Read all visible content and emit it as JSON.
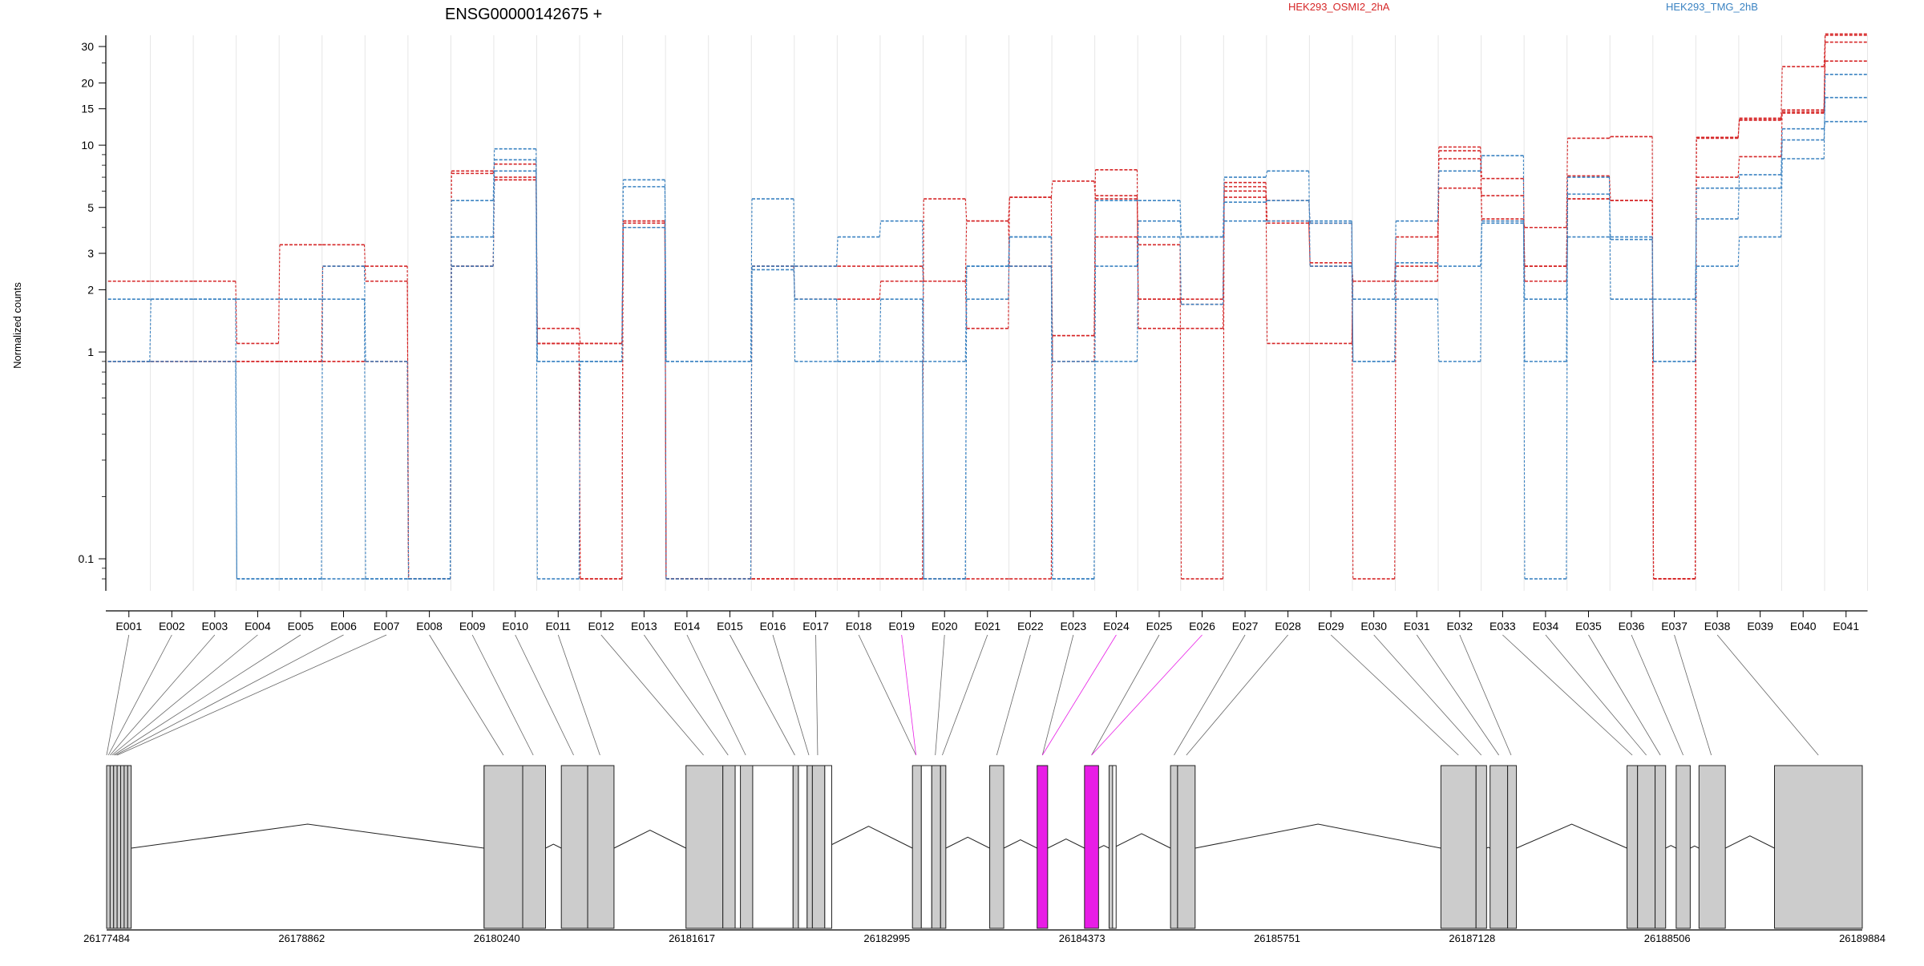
{
  "title": "ENSG00000142675 +",
  "colors": {
    "cond_a": "#d62728",
    "cond_b": "#3b83c2",
    "highlight": "#e81de6",
    "exon_fill": "#cccccc",
    "grid": "#e6e6e6",
    "axis": "#000000"
  },
  "chart_data": {
    "type": "line",
    "title": "ENSG00000142675 +",
    "xlabel": "",
    "ylabel": "Normalized counts",
    "y_scale": "log",
    "ylim": [
      0.07,
      34
    ],
    "y_ticks": [
      0.1,
      1,
      2,
      3,
      5,
      10,
      15,
      20,
      30
    ],
    "y_tick_labels": [
      "0.1",
      "1",
      "2",
      "3",
      "5",
      "10",
      "15",
      "20",
      "30"
    ],
    "grid": "vertical",
    "legend": [
      {
        "name": "HEK293_OSMI2_2hA",
        "color": "#d62728"
      },
      {
        "name": "HEK293_TMG_2hB",
        "color": "#3b83c2"
      }
    ],
    "categories": [
      "E001",
      "E002",
      "E003",
      "E004",
      "E005",
      "E006",
      "E007",
      "E008",
      "E009",
      "E010",
      "E011",
      "E012",
      "E013",
      "E014",
      "E015",
      "E016",
      "E017",
      "E018",
      "E019",
      "E020",
      "E021",
      "E022",
      "E023",
      "E024",
      "E025",
      "E026",
      "E027",
      "E028",
      "E029",
      "E030",
      "E031",
      "E032",
      "E033",
      "E034",
      "E035",
      "E036",
      "E037",
      "E038",
      "E039",
      "E040",
      "E041"
    ],
    "series": [
      {
        "group": "a",
        "values": [
          2.2,
          2.2,
          2.2,
          1.1,
          3.3,
          3.3,
          2.2,
          0.08,
          7.5,
          7.0,
          1.1,
          1.1,
          4.2,
          0.08,
          0.08,
          0.08,
          0.08,
          0.08,
          0.08,
          0.08,
          0.08,
          0.08,
          1.2,
          7.6,
          1.3,
          1.3,
          5.6,
          5.4,
          4.2,
          0.08,
          2.2,
          9.8,
          4.3,
          4.0,
          10.8,
          11.0,
          0.08,
          10.9,
          13.5,
          24.0,
          34.0
        ]
      },
      {
        "group": "a",
        "values": [
          0.9,
          0.9,
          0.9,
          0.9,
          0.9,
          2.6,
          2.6,
          0.08,
          7.3,
          8.1,
          1.3,
          1.1,
          4.0,
          0.08,
          0.08,
          0.08,
          0.08,
          0.08,
          0.08,
          5.5,
          4.3,
          5.6,
          6.7,
          5.5,
          3.3,
          0.08,
          6.6,
          1.1,
          1.1,
          2.2,
          3.6,
          9.4,
          6.9,
          2.2,
          5.5,
          5.4,
          0.08,
          7.0,
          8.8,
          14.5,
          25.5
        ]
      },
      {
        "group": "a",
        "values": [
          0.9,
          0.9,
          0.9,
          0.9,
          0.9,
          0.9,
          0.9,
          0.08,
          2.6,
          6.8,
          1.1,
          0.08,
          4.3,
          0.08,
          0.08,
          2.6,
          2.6,
          2.6,
          2.6,
          2.2,
          1.3,
          5.6,
          0.9,
          3.6,
          1.8,
          1.8,
          6.3,
          4.2,
          2.6,
          2.2,
          2.6,
          6.2,
          5.7,
          2.6,
          7.1,
          5.4,
          0.08,
          10.8,
          13.3,
          14.8,
          34.5
        ]
      },
      {
        "group": "a",
        "values": [
          0.9,
          0.9,
          0.9,
          0.9,
          0.9,
          0.9,
          0.9,
          0.08,
          2.6,
          6.8,
          1.1,
          0.08,
          4.3,
          0.08,
          0.08,
          2.6,
          1.8,
          1.8,
          2.2,
          2.2,
          4.3,
          2.6,
          1.2,
          5.7,
          1.8,
          1.7,
          6.0,
          4.3,
          2.7,
          2.2,
          2.2,
          8.6,
          4.4,
          2.6,
          5.5,
          5.4,
          0.08,
          10.9,
          13.2,
          14.3,
          31.5
        ]
      },
      {
        "group": "b",
        "values": [
          1.8,
          1.8,
          1.8,
          1.8,
          1.8,
          1.8,
          0.08,
          0.08,
          5.4,
          9.6,
          0.9,
          0.9,
          6.8,
          0.9,
          0.9,
          5.5,
          0.9,
          0.9,
          1.8,
          0.08,
          1.8,
          3.6,
          0.08,
          5.4,
          5.4,
          3.6,
          7.0,
          7.5,
          2.6,
          1.8,
          4.3,
          7.5,
          8.9,
          0.08,
          7.0,
          1.8,
          1.8,
          4.4,
          7.2,
          12.0,
          13.0
        ]
      },
      {
        "group": "b",
        "values": [
          0.9,
          1.8,
          1.8,
          0.08,
          0.08,
          2.6,
          0.9,
          0.08,
          3.6,
          8.5,
          0.9,
          0.9,
          6.3,
          0.9,
          0.9,
          2.6,
          2.6,
          3.6,
          4.3,
          0.9,
          2.6,
          3.6,
          0.08,
          2.6,
          4.3,
          3.6,
          4.3,
          4.3,
          4.2,
          0.9,
          1.8,
          0.9,
          4.3,
          1.8,
          3.6,
          3.6,
          0.9,
          6.2,
          6.2,
          10.6,
          17.0
        ]
      },
      {
        "group": "b",
        "values": [
          0.9,
          0.9,
          0.9,
          0.08,
          0.08,
          0.08,
          0.08,
          0.08,
          2.6,
          7.5,
          0.08,
          0.9,
          4.0,
          0.08,
          0.08,
          2.5,
          1.8,
          0.9,
          0.9,
          0.08,
          2.6,
          2.6,
          0.9,
          0.9,
          3.6,
          1.7,
          5.3,
          5.4,
          4.3,
          0.9,
          2.7,
          2.6,
          4.2,
          0.9,
          5.8,
          3.5,
          0.9,
          2.6,
          3.6,
          8.6,
          22.0
        ]
      }
    ]
  },
  "gene_model": {
    "coord_labels": [
      "26177484",
      "26178862",
      "26180240",
      "26181617",
      "26182995",
      "26184373",
      "26185751",
      "26187128",
      "26188506",
      "26189884"
    ],
    "exons": [
      {
        "start": 0.0,
        "end": 0.002,
        "hl": false
      },
      {
        "start": 0.002,
        "end": 0.004,
        "hl": false
      },
      {
        "start": 0.004,
        "end": 0.006,
        "hl": false
      },
      {
        "start": 0.006,
        "end": 0.008,
        "hl": false
      },
      {
        "start": 0.008,
        "end": 0.01,
        "hl": false
      },
      {
        "start": 0.01,
        "end": 0.012,
        "hl": false
      },
      {
        "start": 0.012,
        "end": 0.014,
        "hl": false
      },
      {
        "start": 0.215,
        "end": 0.237,
        "hl": false
      },
      {
        "start": 0.237,
        "end": 0.25,
        "hl": false
      },
      {
        "start": 0.259,
        "end": 0.274,
        "hl": false
      },
      {
        "start": 0.274,
        "end": 0.289,
        "hl": false
      },
      {
        "start": 0.33,
        "end": 0.351,
        "hl": false
      },
      {
        "start": 0.351,
        "end": 0.358,
        "hl": false
      },
      {
        "start": 0.361,
        "end": 0.368,
        "hl": false
      },
      {
        "start": 0.391,
        "end": 0.394,
        "hl": false
      },
      {
        "start": 0.399,
        "end": 0.402,
        "hl": false
      },
      {
        "start": 0.402,
        "end": 0.409,
        "hl": false
      },
      {
        "start": 0.459,
        "end": 0.464,
        "hl": false
      },
      {
        "start": 0.47,
        "end": 0.475,
        "hl": false
      },
      {
        "start": 0.475,
        "end": 0.478,
        "hl": false
      },
      {
        "start": 0.503,
        "end": 0.511,
        "hl": false
      },
      {
        "start": 0.53,
        "end": 0.536,
        "hl": true
      },
      {
        "start": 0.557,
        "end": 0.565,
        "hl": true
      },
      {
        "start": 0.571,
        "end": 0.573,
        "hl": false
      },
      {
        "start": 0.606,
        "end": 0.61,
        "hl": false
      },
      {
        "start": 0.61,
        "end": 0.62,
        "hl": false
      },
      {
        "start": 0.76,
        "end": 0.78,
        "hl": false
      },
      {
        "start": 0.78,
        "end": 0.786,
        "hl": false
      },
      {
        "start": 0.788,
        "end": 0.798,
        "hl": false
      },
      {
        "start": 0.798,
        "end": 0.803,
        "hl": false
      },
      {
        "start": 0.866,
        "end": 0.872,
        "hl": false
      },
      {
        "start": 0.872,
        "end": 0.882,
        "hl": false
      },
      {
        "start": 0.882,
        "end": 0.888,
        "hl": false
      },
      {
        "start": 0.894,
        "end": 0.902,
        "hl": false
      },
      {
        "start": 0.907,
        "end": 0.922,
        "hl": false
      },
      {
        "start": 0.95,
        "end": 1.0,
        "hl": false
      }
    ],
    "open_blocks": [
      {
        "start": 0.215,
        "end": 0.237
      },
      {
        "start": 0.358,
        "end": 0.391
      },
      {
        "start": 0.394,
        "end": 0.399
      },
      {
        "start": 0.409,
        "end": 0.413
      },
      {
        "start": 0.464,
        "end": 0.47
      },
      {
        "start": 0.571,
        "end": 0.575
      }
    ],
    "links": [
      {
        "exon": 0,
        "at": 0.0,
        "hl": false
      },
      {
        "exon": 1,
        "at": 0.001,
        "hl": false
      },
      {
        "exon": 2,
        "at": 0.002,
        "hl": false
      },
      {
        "exon": 3,
        "at": 0.003,
        "hl": false
      },
      {
        "exon": 4,
        "at": 0.004,
        "hl": false
      },
      {
        "exon": 5,
        "at": 0.005,
        "hl": false
      },
      {
        "exon": 6,
        "at": 0.006,
        "hl": false
      },
      {
        "exon": 7,
        "at": 0.226,
        "hl": false
      },
      {
        "exon": 8,
        "at": 0.243,
        "hl": false
      },
      {
        "exon": 9,
        "at": 0.266,
        "hl": false
      },
      {
        "exon": 10,
        "at": 0.281,
        "hl": false
      },
      {
        "exon": 11,
        "at": 0.34,
        "hl": false
      },
      {
        "exon": 12,
        "at": 0.354,
        "hl": false
      },
      {
        "exon": 13,
        "at": 0.364,
        "hl": false
      },
      {
        "exon": 14,
        "at": 0.392,
        "hl": false
      },
      {
        "exon": 15,
        "at": 0.4,
        "hl": false
      },
      {
        "exon": 16,
        "at": 0.405,
        "hl": false
      },
      {
        "exon": 17,
        "at": 0.461,
        "hl": false
      },
      {
        "exon": 18,
        "at": 0.461,
        "hl": true
      },
      {
        "exon": 19,
        "at": 0.472,
        "hl": false
      },
      {
        "exon": 20,
        "at": 0.476,
        "hl": false
      },
      {
        "exon": 21,
        "at": 0.507,
        "hl": false
      },
      {
        "exon": 22,
        "at": 0.533,
        "hl": false
      },
      {
        "exon": 23,
        "at": 0.533,
        "hl": true
      },
      {
        "exon": 24,
        "at": 0.561,
        "hl": false
      },
      {
        "exon": 25,
        "at": 0.561,
        "hl": true
      },
      {
        "exon": 26,
        "at": 0.608,
        "hl": false
      },
      {
        "exon": 27,
        "at": 0.615,
        "hl": false
      },
      {
        "exon": 28,
        "at": 0.77,
        "hl": false
      },
      {
        "exon": 29,
        "at": 0.783,
        "hl": false
      },
      {
        "exon": 30,
        "at": 0.793,
        "hl": false
      },
      {
        "exon": 31,
        "at": 0.8,
        "hl": false
      },
      {
        "exon": 32,
        "at": 0.869,
        "hl": false
      },
      {
        "exon": 33,
        "at": 0.877,
        "hl": false
      },
      {
        "exon": 34,
        "at": 0.885,
        "hl": false
      },
      {
        "exon": 35,
        "at": 0.898,
        "hl": false
      },
      {
        "exon": 36,
        "at": 0.914,
        "hl": false
      },
      {
        "exon": 37,
        "at": 0.975,
        "hl": false
      }
    ]
  }
}
